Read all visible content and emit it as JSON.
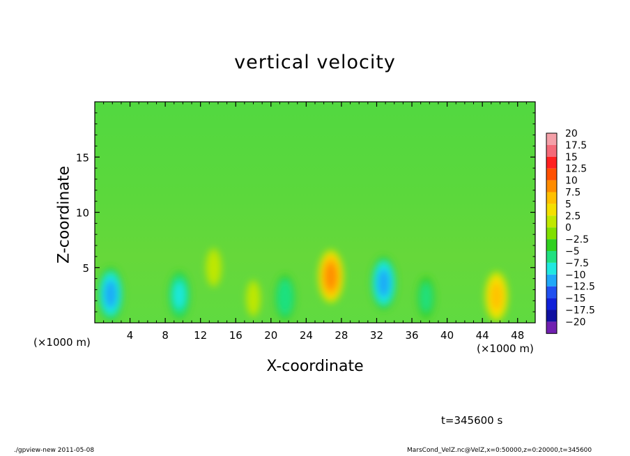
{
  "chart_data": {
    "type": "heatmap",
    "title": "vertical velocity",
    "xlabel": "X-coordinate",
    "ylabel": "Z-coordinate",
    "x_unit_label": "(×1000 m)",
    "x_ticks": [
      "4",
      "8",
      "12",
      "16",
      "20",
      "24",
      "28",
      "32",
      "36",
      "40",
      "44",
      "48"
    ],
    "x_tick_values": [
      4,
      8,
      12,
      16,
      20,
      24,
      28,
      32,
      36,
      40,
      44,
      48
    ],
    "y_ticks": [
      "5",
      "10",
      "15"
    ],
    "y_tick_values": [
      5,
      10,
      15
    ],
    "xlim": [
      0,
      50
    ],
    "ylim": [
      0,
      20
    ],
    "colorbar": {
      "labels": [
        "20",
        "17.5",
        "15",
        "12.5",
        "10",
        "7.5",
        "5",
        "2.5",
        "0",
        "−2.5",
        "−5",
        "−7.5",
        "−10",
        "−12.5",
        "−15",
        "−17.5",
        "−20"
      ],
      "colors": [
        "#f4a0a8",
        "#f46a78",
        "#ff2020",
        "#ff5000",
        "#ff8c00",
        "#ffc000",
        "#f4e000",
        "#c0e800",
        "#80e000",
        "#30d020",
        "#20e080",
        "#20e8e0",
        "#20a8f8",
        "#2050f0",
        "#1020d8",
        "#1010a0",
        "#7020b0"
      ]
    },
    "features": [
      {
        "x": 1.8,
        "z": 2.6,
        "w": -12
      },
      {
        "x": 9.6,
        "z": 2.5,
        "w": -9
      },
      {
        "x": 21.6,
        "z": 2.3,
        "w": -8
      },
      {
        "x": 32.8,
        "z": 3.6,
        "w": -12
      },
      {
        "x": 37.6,
        "z": 2.3,
        "w": -6
      },
      {
        "x": 26.8,
        "z": 4.2,
        "w": 12
      },
      {
        "x": 45.6,
        "z": 2.4,
        "w": 10
      },
      {
        "x": 13.5,
        "z": 5.0,
        "w": 4
      },
      {
        "x": 18.0,
        "z": 2.2,
        "w": 3
      }
    ]
  },
  "annotations": {
    "timestamp": "t=345600 s",
    "footer_left": "./gpview-new  2011-05-08",
    "footer_right": "MarsCond_VelZ.nc@VelZ,x=0:50000,z=0:20000,t=345600"
  }
}
